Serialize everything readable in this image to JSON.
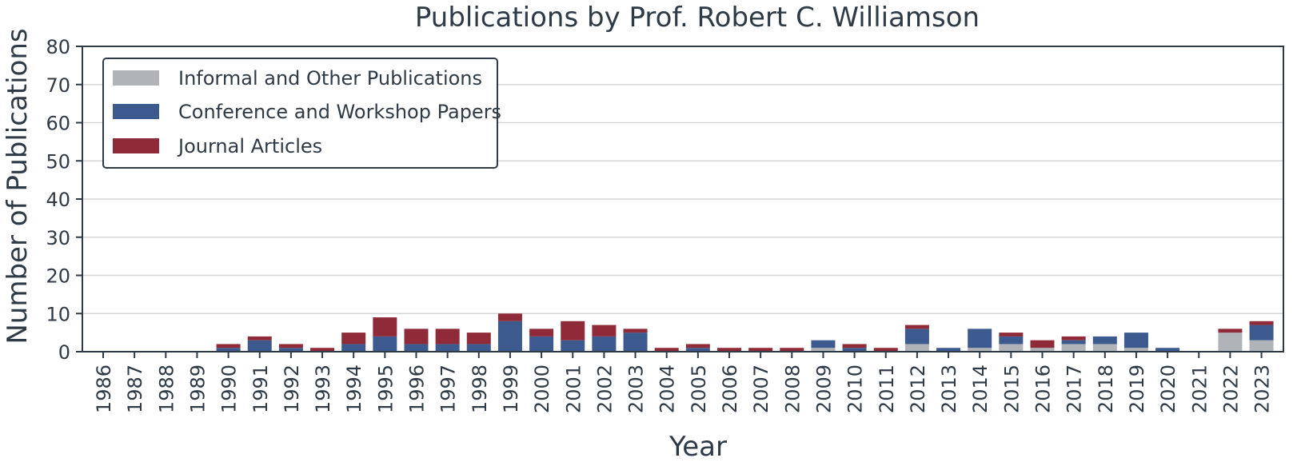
{
  "chart_data": {
    "type": "bar",
    "stacked": true,
    "title": "Publications by Prof. Robert C. Williamson",
    "xlabel": "Year",
    "ylabel": "Number of Publications",
    "ylim": [
      0,
      80
    ],
    "yticks": [
      0,
      10,
      20,
      30,
      40,
      50,
      60,
      70,
      80
    ],
    "grid": "horizontal",
    "legend_position": "top-left",
    "categories": [
      "1986",
      "1987",
      "1988",
      "1989",
      "1990",
      "1991",
      "1992",
      "1993",
      "1994",
      "1995",
      "1996",
      "1997",
      "1998",
      "1999",
      "2000",
      "2001",
      "2002",
      "2003",
      "2004",
      "2005",
      "2006",
      "2007",
      "2008",
      "2009",
      "2010",
      "2011",
      "2012",
      "2013",
      "2014",
      "2015",
      "2016",
      "2017",
      "2018",
      "2019",
      "2020",
      "2021",
      "2022",
      "2023"
    ],
    "series": [
      {
        "name": "Informal and Other Publications",
        "color": "#b0b3b8",
        "values": [
          0,
          0,
          0,
          0,
          0,
          0,
          0,
          0,
          0,
          0,
          0,
          0,
          0,
          0,
          0,
          0,
          0,
          0,
          0,
          0,
          0,
          0,
          0,
          1,
          0,
          0,
          2,
          0,
          1,
          2,
          1,
          2,
          2,
          1,
          0,
          0,
          5,
          3
        ]
      },
      {
        "name": "Conference and Workshop Papers",
        "color": "#3d5a8f",
        "values": [
          0,
          0,
          0,
          0,
          1,
          3,
          1,
          0,
          2,
          4,
          2,
          2,
          2,
          8,
          4,
          3,
          4,
          5,
          0,
          1,
          0,
          0,
          0,
          2,
          1,
          0,
          4,
          1,
          5,
          2,
          0,
          1,
          2,
          4,
          1,
          0,
          0,
          4
        ]
      },
      {
        "name": "Journal Articles",
        "color": "#8f2a38",
        "values": [
          0,
          0,
          0,
          0,
          1,
          1,
          1,
          1,
          3,
          5,
          4,
          4,
          3,
          2,
          2,
          5,
          3,
          1,
          1,
          1,
          1,
          1,
          1,
          0,
          1,
          1,
          1,
          0,
          0,
          1,
          2,
          1,
          0,
          0,
          0,
          0,
          1,
          1
        ]
      }
    ]
  }
}
